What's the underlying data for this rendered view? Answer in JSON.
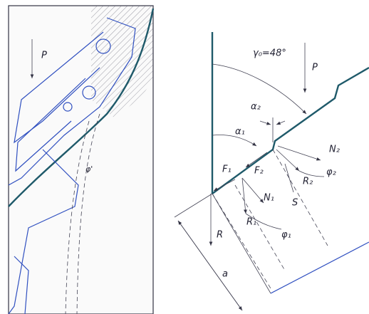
{
  "left": {
    "load": "P",
    "angle": "φ'"
  },
  "right": {
    "load": "P",
    "gamma": "γ₀=48°",
    "alpha2": "α₂",
    "alpha1": "α₁",
    "F1": "F₁",
    "F2": "F₂",
    "N2": "N₂",
    "phi2": "φ₂",
    "R2": "R₂",
    "N1": "N₁",
    "S": "S",
    "R1": "R₁",
    "phi1": "φ₁",
    "R": "R",
    "a": "a"
  }
}
